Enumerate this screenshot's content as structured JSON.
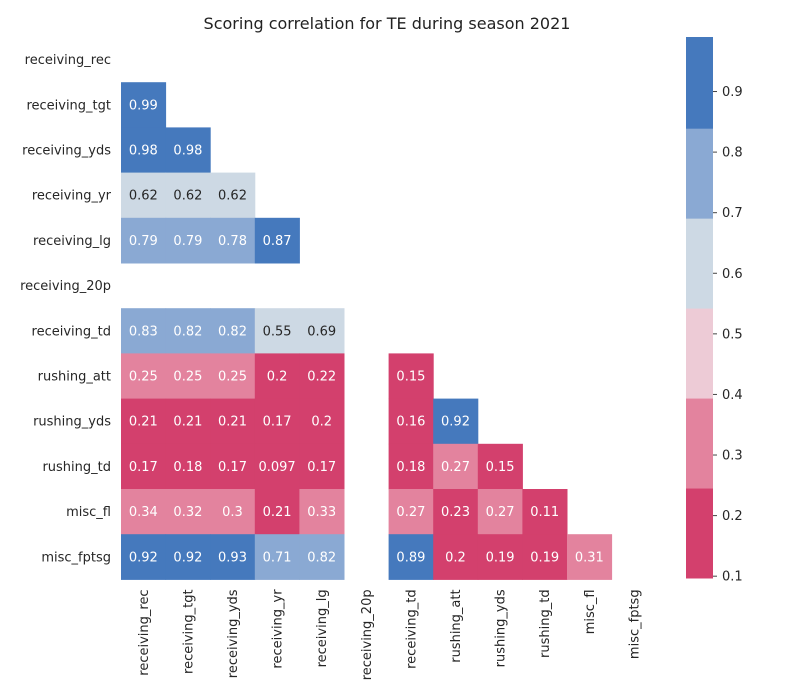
{
  "chart_data": {
    "type": "heatmap",
    "title": "Scoring correlation for TE during season 2021",
    "xlabel": "",
    "ylabel": "",
    "labels": [
      "receiving_rec",
      "receiving_tgt",
      "receiving_yds",
      "receiving_yr",
      "receiving_lg",
      "receiving_20p",
      "receiving_td",
      "rushing_att",
      "rushing_yds",
      "rushing_td",
      "misc_fl",
      "misc_fptsg"
    ],
    "matrix": [
      [
        null,
        null,
        null,
        null,
        null,
        null,
        null,
        null,
        null,
        null,
        null,
        null
      ],
      [
        0.99,
        null,
        null,
        null,
        null,
        null,
        null,
        null,
        null,
        null,
        null,
        null
      ],
      [
        0.98,
        0.98,
        null,
        null,
        null,
        null,
        null,
        null,
        null,
        null,
        null,
        null
      ],
      [
        0.62,
        0.62,
        0.62,
        null,
        null,
        null,
        null,
        null,
        null,
        null,
        null,
        null
      ],
      [
        0.79,
        0.79,
        0.78,
        0.87,
        null,
        null,
        null,
        null,
        null,
        null,
        null,
        null
      ],
      [
        null,
        null,
        null,
        null,
        null,
        null,
        null,
        null,
        null,
        null,
        null,
        null
      ],
      [
        0.83,
        0.82,
        0.82,
        0.55,
        0.69,
        null,
        null,
        null,
        null,
        null,
        null,
        null
      ],
      [
        0.25,
        0.25,
        0.25,
        0.2,
        0.22,
        null,
        0.15,
        null,
        null,
        null,
        null,
        null
      ],
      [
        0.21,
        0.21,
        0.21,
        0.17,
        0.2,
        null,
        0.16,
        0.92,
        null,
        null,
        null,
        null
      ],
      [
        0.17,
        0.18,
        0.17,
        0.097,
        0.17,
        null,
        0.18,
        0.27,
        0.15,
        null,
        null,
        null
      ],
      [
        0.34,
        0.32,
        0.3,
        0.21,
        0.33,
        null,
        0.27,
        0.23,
        0.27,
        0.11,
        null,
        null
      ],
      [
        0.92,
        0.92,
        0.93,
        0.71,
        0.82,
        null,
        0.89,
        0.2,
        0.19,
        0.19,
        0.31,
        null
      ]
    ],
    "colorbar": {
      "range": [
        0.097,
        0.99
      ],
      "ticks": [
        "0.1",
        "0.2",
        "0.3",
        "0.4",
        "0.5",
        "0.6",
        "0.7",
        "0.8",
        "0.9"
      ],
      "bins": [
        {
          "from": 0.097,
          "to": 0.2455,
          "color": "#d3406d"
        },
        {
          "from": 0.2455,
          "to": 0.394,
          "color": "#e3839e"
        },
        {
          "from": 0.394,
          "to": 0.5425,
          "color": "#edcbd6"
        },
        {
          "from": 0.5425,
          "to": 0.691,
          "color": "#cdd9e4"
        },
        {
          "from": 0.691,
          "to": 0.8395,
          "color": "#8aa9d3"
        },
        {
          "from": 0.8395,
          "to": 0.99,
          "color": "#4579bd"
        }
      ]
    },
    "grid": false,
    "legend": "colorbar-right"
  }
}
